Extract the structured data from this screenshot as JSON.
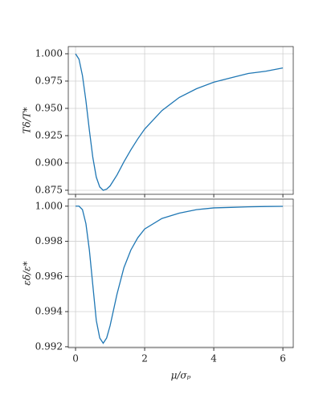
{
  "chart_data": [
    {
      "type": "line",
      "ylabel": "Tδ/T*",
      "x": [
        0,
        0.1,
        0.2,
        0.3,
        0.4,
        0.5,
        0.6,
        0.7,
        0.8,
        0.9,
        1.0,
        1.2,
        1.4,
        1.6,
        1.8,
        2.0,
        2.5,
        3,
        3.5,
        4,
        4.5,
        5,
        5.5,
        6
      ],
      "series": [
        {
          "color": "#1f77b4",
          "values": [
            1.0,
            0.995,
            0.98,
            0.957,
            0.93,
            0.905,
            0.887,
            0.878,
            0.875,
            0.876,
            0.879,
            0.889,
            0.901,
            0.912,
            0.922,
            0.931,
            0.948,
            0.96,
            0.968,
            0.974,
            0.978,
            0.982,
            0.984,
            0.987
          ]
        }
      ],
      "xlim": [
        -0.21,
        6.3
      ],
      "xticks": [
        0,
        2,
        4,
        6
      ],
      "xticklabels": false,
      "ylim": [
        0.8713,
        1.0066
      ],
      "yticks": [
        0.875,
        {
          "value": 0.9,
          "label": "0.900"
        },
        0.925,
        {
          "value": 0.95,
          "label": "0.950"
        },
        0.975,
        {
          "value": 1,
          "label": "1.000"
        }
      ],
      "grid": true
    },
    {
      "type": "line",
      "ylabel": "εδ/ε*",
      "xlabel": "μ/σₚ",
      "x": [
        0,
        0.1,
        0.2,
        0.3,
        0.4,
        0.5,
        0.6,
        0.7,
        0.8,
        0.9,
        1.0,
        1.2,
        1.4,
        1.6,
        1.8,
        2.0,
        2.5,
        3,
        3.5,
        4,
        4.5,
        5,
        5.5,
        6
      ],
      "series": [
        {
          "color": "#1f77b4",
          "values": [
            1.0,
            1.0,
            0.9998,
            0.999,
            0.9975,
            0.9955,
            0.9935,
            0.9925,
            0.9922,
            0.9925,
            0.9932,
            0.995,
            0.9965,
            0.9975,
            0.9982,
            0.9987,
            0.9993,
            0.9996,
            0.9998,
            0.9999,
            0.99993,
            0.99996,
            0.99998,
            0.99999
          ]
        }
      ],
      "xlim": [
        -0.21,
        6.3
      ],
      "xticks": [
        0,
        2,
        4,
        6
      ],
      "xticklabels": true,
      "ylim": [
        0.99195,
        1.0004
      ],
      "yticks": [
        0.992,
        0.994,
        0.996,
        0.998,
        {
          "value": 1,
          "label": "1.000"
        }
      ],
      "grid": true
    }
  ]
}
